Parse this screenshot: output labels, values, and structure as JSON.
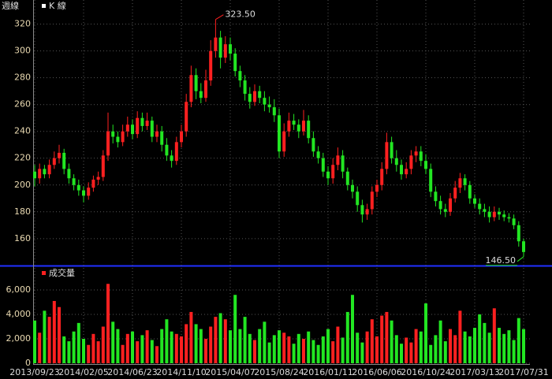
{
  "chart_data": {
    "type": "candlestick",
    "title": "週線",
    "legend_price": "K 線",
    "legend_volume": "成交量",
    "up_color": "#ff2020",
    "down_color": "#22e622",
    "grid": true,
    "categories": [
      "2013/09/23",
      null,
      null,
      null,
      null,
      null,
      null,
      null,
      null,
      null,
      "2014/02/05",
      null,
      null,
      null,
      null,
      null,
      null,
      null,
      null,
      null,
      "2014/06/23",
      null,
      null,
      null,
      null,
      null,
      null,
      null,
      null,
      null,
      "2014/11/10",
      null,
      null,
      null,
      null,
      null,
      null,
      null,
      null,
      null,
      "2015/04/07",
      null,
      null,
      null,
      null,
      null,
      null,
      null,
      null,
      null,
      "2015/08/24",
      null,
      null,
      null,
      null,
      null,
      null,
      null,
      null,
      null,
      "2016/01/11",
      null,
      null,
      null,
      null,
      null,
      null,
      null,
      null,
      null,
      "2016/06/06",
      null,
      null,
      null,
      null,
      null,
      null,
      null,
      null,
      null,
      "2016/10/24",
      null,
      null,
      null,
      null,
      null,
      null,
      null,
      null,
      null,
      "2017/03/13",
      null,
      null,
      null,
      null,
      null,
      null,
      null,
      null,
      null,
      "2017/07/31"
    ],
    "open": [
      210,
      205,
      212,
      208,
      215,
      220,
      224,
      212,
      205,
      200,
      196,
      192,
      198,
      204,
      206,
      222,
      240,
      236,
      232,
      240,
      245,
      238,
      250,
      244,
      248,
      236,
      240,
      230,
      222,
      218,
      232,
      240,
      262,
      282,
      270,
      265,
      278,
      300,
      310,
      295,
      305,
      298,
      285,
      278,
      268,
      262,
      270,
      265,
      260,
      258,
      252,
      225,
      240,
      248,
      245,
      240,
      248,
      235,
      225,
      220,
      210,
      205,
      215,
      222,
      210,
      200,
      195,
      185,
      178,
      182,
      195,
      200,
      212,
      232,
      220,
      215,
      208,
      212,
      222,
      225,
      218,
      212,
      195,
      188,
      182,
      180,
      190,
      198,
      205,
      200,
      190,
      186,
      182,
      180,
      176,
      180,
      178,
      176,
      175,
      170,
      158
    ],
    "high": [
      215,
      216,
      215,
      219,
      225,
      230,
      227,
      216,
      208,
      204,
      199,
      202,
      207,
      210,
      226,
      254,
      245,
      240,
      245,
      251,
      249,
      255,
      254,
      254,
      251,
      245,
      244,
      235,
      226,
      236,
      245,
      268,
      289,
      287,
      276,
      286,
      308,
      323.5,
      315,
      311,
      310,
      302,
      289,
      282,
      273,
      275,
      274,
      270,
      266,
      264,
      257,
      246,
      254,
      253,
      249,
      256,
      252,
      240,
      229,
      224,
      214,
      220,
      228,
      226,
      213,
      204,
      199,
      189,
      186,
      199,
      204,
      217,
      239,
      236,
      226,
      219,
      217,
      226,
      229,
      229,
      223,
      216,
      199,
      192,
      186,
      194,
      203,
      209,
      208,
      203,
      193,
      190,
      186,
      184,
      184,
      183,
      181,
      179,
      178,
      173,
      160
    ],
    "low": [
      199,
      201,
      205,
      205,
      212,
      216,
      208,
      201,
      196,
      192,
      187,
      189,
      195,
      200,
      203,
      218,
      231,
      228,
      229,
      236,
      234,
      235,
      240,
      241,
      232,
      232,
      225,
      218,
      213,
      215,
      228,
      236,
      258,
      264,
      261,
      262,
      274,
      295,
      287,
      291,
      293,
      281,
      273,
      263,
      257,
      259,
      261,
      255,
      254,
      247,
      220,
      221,
      236,
      241,
      235,
      237,
      231,
      221,
      216,
      206,
      200,
      201,
      211,
      205,
      196,
      190,
      180,
      172,
      174,
      178,
      191,
      196,
      208,
      216,
      210,
      204,
      205,
      208,
      217,
      214,
      208,
      191,
      184,
      178,
      176,
      177,
      187,
      194,
      196,
      186,
      183,
      178,
      176,
      172,
      173,
      174,
      173,
      172,
      167,
      154,
      146.5
    ],
    "close": [
      205,
      212,
      208,
      215,
      220,
      224,
      212,
      205,
      200,
      196,
      192,
      198,
      204,
      206,
      222,
      240,
      236,
      232,
      240,
      245,
      238,
      250,
      244,
      248,
      236,
      240,
      230,
      222,
      218,
      232,
      240,
      262,
      282,
      270,
      265,
      278,
      300,
      310,
      295,
      305,
      298,
      285,
      278,
      268,
      262,
      270,
      265,
      260,
      258,
      252,
      225,
      240,
      248,
      245,
      240,
      248,
      235,
      225,
      220,
      210,
      205,
      215,
      222,
      210,
      200,
      195,
      185,
      178,
      182,
      195,
      200,
      212,
      232,
      220,
      215,
      208,
      212,
      222,
      225,
      218,
      212,
      195,
      188,
      182,
      180,
      190,
      198,
      205,
      200,
      190,
      186,
      182,
      180,
      176,
      180,
      178,
      176,
      175,
      170,
      158,
      150
    ],
    "volume": [
      3500,
      2500,
      4300,
      3800,
      5100,
      4600,
      2200,
      1800,
      2600,
      3300,
      2000,
      1500,
      2400,
      1800,
      3000,
      6500,
      3400,
      2800,
      1500,
      2400,
      2600,
      1800,
      2300,
      2700,
      1900,
      1400,
      2800,
      3600,
      2600,
      2400,
      2200,
      3200,
      4200,
      3200,
      2800,
      2000,
      3000,
      3800,
      4100,
      3600,
      2700,
      5600,
      2800,
      3800,
      2400,
      1900,
      2800,
      3400,
      1700,
      2300,
      2700,
      2500,
      2200,
      1600,
      2400,
      2000,
      2600,
      1900,
      1500,
      2200,
      2800,
      1800,
      3000,
      2100,
      4200,
      5600,
      2500,
      1700,
      2600,
      3600,
      2200,
      3900,
      4200,
      3500,
      2300,
      1600,
      2100,
      1700,
      2800,
      2600,
      4900,
      1500,
      2300,
      3500,
      1800,
      2800,
      2300,
      4300,
      2600,
      2200,
      2900,
      4000,
      3300,
      2500,
      4500,
      2900,
      2400,
      2700,
      1900,
      3700,
      2800
    ],
    "ylim": [
      140.5,
      338
    ],
    "yticks": [
      160,
      180,
      200,
      220,
      240,
      260,
      280,
      300,
      320
    ],
    "y2lim": [
      0,
      7680
    ],
    "y2ticks": [
      0,
      {
        "value": 2000,
        "label": "2,000"
      },
      {
        "value": 4000,
        "label": "4,000"
      },
      {
        "value": 6000,
        "label": "6,000"
      }
    ],
    "max_label": "323.50",
    "min_label": "146.50"
  }
}
